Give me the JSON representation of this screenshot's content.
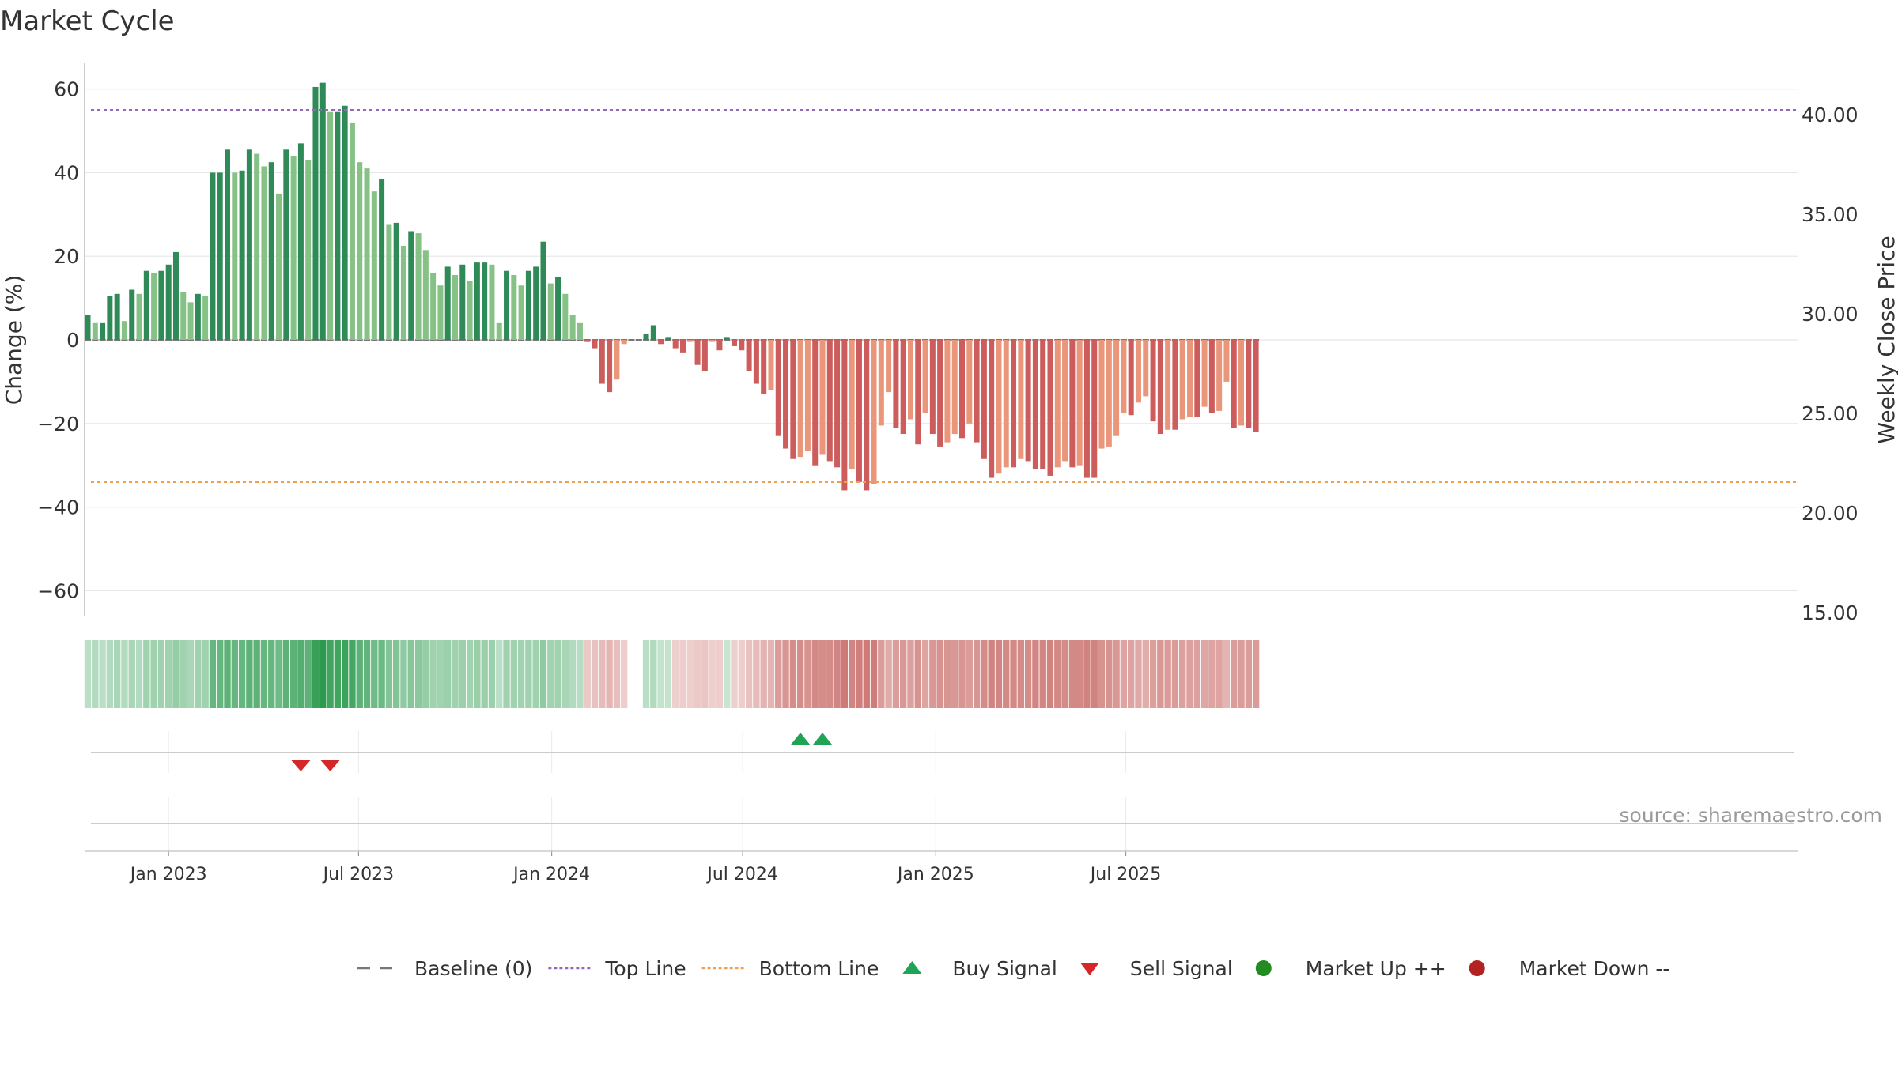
{
  "title": "Market Cycle",
  "source": "source: sharemaestro.com",
  "colors": {
    "pos_strong": "#2e8b57",
    "pos_light": "#86c186",
    "neg_strong": "#cd5c5c",
    "neg_light": "#e9967a",
    "top_line": "#9467bd",
    "bottom_line": "#f0a050",
    "baseline": "#777777",
    "buy": "#1fa354",
    "sell": "#d62728",
    "market_up": "#228b22",
    "market_down": "#b22222"
  },
  "legend": [
    {
      "label": "Baseline (0)",
      "icon": "dash-line-icon",
      "color": "#777777"
    },
    {
      "label": "Top Line",
      "icon": "dotted-line-icon",
      "color": "#9467bd"
    },
    {
      "label": "Bottom Line",
      "icon": "dotted-line-icon",
      "color": "#f0a050"
    },
    {
      "label": "Buy Signal",
      "icon": "triangle-up-icon",
      "color": "#1fa354"
    },
    {
      "label": "Sell Signal",
      "icon": "triangle-down-icon",
      "color": "#d62728"
    },
    {
      "label": "Market Up ++",
      "icon": "circle-icon",
      "color": "#228b22"
    },
    {
      "label": "Market Down --",
      "icon": "circle-icon",
      "color": "#b22222"
    }
  ],
  "chart_data": {
    "type": "bar",
    "title": "Market Cycle",
    "ylabel": "Change (%)",
    "y2label": "Weekly Close Price",
    "ylim": [
      -66,
      66
    ],
    "y2lim": [
      15,
      41
    ],
    "yticks": [
      60,
      40,
      20,
      0,
      -20,
      -40,
      -60
    ],
    "ytick_labels": [
      "60",
      "40",
      "20",
      "0",
      "−20",
      "−40",
      "−60"
    ],
    "y2ticks": [
      40,
      35,
      30,
      25,
      20,
      15
    ],
    "y2tick_labels": [
      "40.00",
      "35.00",
      "30.00",
      "25.00",
      "20.00",
      "15.00"
    ],
    "x_start": "2022-10-16",
    "x_end": "2025-09-21",
    "xticks": [
      "2023-01-01",
      "2023-07-01",
      "2024-01-01",
      "2024-07-01",
      "2025-01-01",
      "2025-07-01"
    ],
    "xtick_labels": [
      "Jan 2023",
      "Jul 2023",
      "Jan 2024",
      "Jul 2024",
      "Jan 2025",
      "Jul 2025"
    ],
    "grid": true,
    "legend_position": "bottom",
    "top_line": 55,
    "bottom_line": -34,
    "baseline": 0,
    "values": [
      6,
      4,
      4,
      10.5,
      11,
      4.5,
      12,
      11,
      16.5,
      16,
      16.5,
      18,
      21,
      11.5,
      9,
      11,
      10.5,
      40,
      40,
      45.5,
      40,
      40.5,
      45.5,
      44.5,
      41.5,
      42.5,
      35,
      45.5,
      44,
      47,
      43,
      60.5,
      61.5,
      54.5,
      54.5,
      56,
      52,
      42.5,
      41,
      35.5,
      38.5,
      27.5,
      28,
      22.5,
      26,
      25.5,
      21.5,
      16,
      13,
      17.5,
      15.5,
      18,
      14,
      18.5,
      18.5,
      18,
      4,
      16.5,
      15.5,
      13,
      16.5,
      17.5,
      23.5,
      13.5,
      15,
      11,
      6,
      4,
      -0.5,
      -2,
      -10.5,
      -12.5,
      -9.5,
      -1,
      null,
      null,
      1.5,
      3.5,
      -1,
      0.5,
      -2,
      -3,
      -0.5,
      -6,
      -7.5,
      -0.5,
      -2.5,
      0.5,
      -1.5,
      -2.5,
      -7.5,
      -10.5,
      -13,
      -12,
      -23,
      -26,
      -28.5,
      -28,
      -26.5,
      -30,
      -27.5,
      -29,
      -30.5,
      -36,
      -31,
      -34,
      -36,
      -34.5,
      -20.5,
      -12.5,
      -21,
      -22.5,
      -19,
      -25,
      -17.5,
      -22.5,
      -25.5,
      -24.5,
      -22.5,
      -23.5,
      -20,
      -24.5,
      -28.5,
      -33,
      -32,
      -30.5,
      -30.5,
      -28.5,
      -29,
      -31,
      -31,
      -32.5,
      -30.5,
      -29,
      -30.5,
      -30,
      -33,
      -33,
      -26,
      -25.5,
      -23,
      -17.5,
      -18,
      -15,
      -13.5,
      -19.5,
      -22.5,
      -21.5,
      -21.5,
      -19,
      -18.5,
      -18.5,
      -16,
      -17.5,
      -17,
      -10,
      -21,
      -20.5,
      -21,
      -22
    ],
    "heatmap_strip": {
      "description_levels": "signed intensity per week (-1 strongly negative .. 1 strongly positive)",
      "values": [
        0.15,
        0.2,
        0.15,
        0.2,
        0.25,
        0.2,
        0.25,
        0.2,
        0.3,
        0.3,
        0.3,
        0.3,
        0.35,
        0.3,
        0.25,
        0.3,
        0.3,
        0.6,
        0.6,
        0.65,
        0.6,
        0.6,
        0.65,
        0.65,
        0.6,
        0.6,
        0.55,
        0.65,
        0.65,
        0.7,
        0.65,
        0.85,
        0.9,
        0.8,
        0.8,
        0.82,
        0.78,
        0.65,
        0.62,
        0.55,
        0.58,
        0.45,
        0.45,
        0.38,
        0.42,
        0.4,
        0.35,
        0.3,
        0.28,
        0.32,
        0.3,
        0.32,
        0.28,
        0.33,
        0.33,
        0.32,
        0.15,
        0.3,
        0.3,
        0.28,
        0.3,
        0.3,
        0.38,
        0.28,
        0.3,
        0.25,
        0.2,
        0.18,
        -0.15,
        -0.2,
        -0.25,
        -0.28,
        -0.22,
        -0.12,
        null,
        null,
        0.15,
        0.2,
        0.1,
        0.1,
        -0.1,
        -0.12,
        -0.1,
        -0.15,
        -0.18,
        -0.1,
        -0.12,
        0.08,
        -0.1,
        -0.12,
        -0.2,
        -0.25,
        -0.3,
        -0.28,
        -0.45,
        -0.5,
        -0.55,
        -0.55,
        -0.52,
        -0.58,
        -0.55,
        -0.56,
        -0.6,
        -0.68,
        -0.6,
        -0.65,
        -0.68,
        -0.66,
        -0.45,
        -0.35,
        -0.45,
        -0.48,
        -0.42,
        -0.52,
        -0.4,
        -0.48,
        -0.52,
        -0.5,
        -0.48,
        -0.5,
        -0.45,
        -0.5,
        -0.56,
        -0.62,
        -0.6,
        -0.58,
        -0.58,
        -0.56,
        -0.56,
        -0.6,
        -0.6,
        -0.62,
        -0.58,
        -0.56,
        -0.58,
        -0.58,
        -0.62,
        -0.62,
        -0.52,
        -0.52,
        -0.48,
        -0.4,
        -0.4,
        -0.36,
        -0.34,
        -0.44,
        -0.48,
        -0.46,
        -0.46,
        -0.42,
        -0.42,
        -0.42,
        -0.38,
        -0.4,
        -0.4,
        -0.3,
        -0.45,
        -0.45,
        -0.45,
        -0.46
      ]
    },
    "buy_signals": [
      "2024-08-25",
      "2024-09-15"
    ],
    "sell_signals": [
      "2023-05-07",
      "2023-06-04"
    ]
  }
}
